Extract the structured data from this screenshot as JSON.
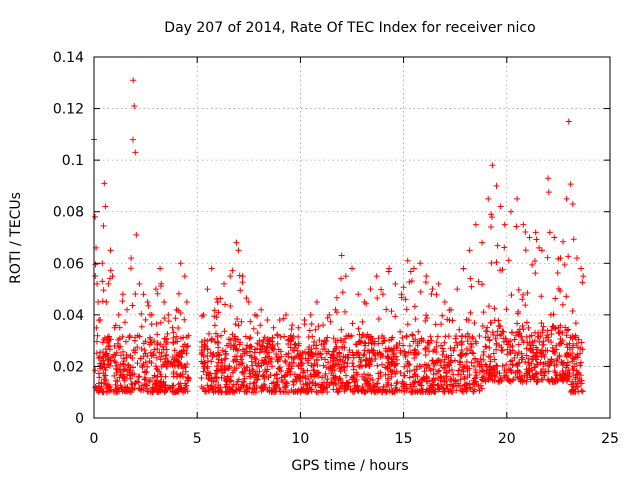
{
  "chart_data": {
    "type": "scatter",
    "title": "Day 207 of 2014, Rate Of TEC Index for receiver nico",
    "xlabel": "GPS time / hours",
    "ylabel": "ROTI / TECUs",
    "xlim": [
      0,
      25
    ],
    "ylim": [
      0,
      0.14
    ],
    "xticks": [
      0,
      5,
      10,
      15,
      20,
      25
    ],
    "xtick_labels": [
      "0",
      "5",
      "10",
      "15",
      "20",
      "25"
    ],
    "yticks": [
      0,
      0.02,
      0.04,
      0.06,
      0.08,
      0.1,
      0.12,
      0.14
    ],
    "ytick_labels": [
      "0",
      "0.02",
      "0.04",
      "0.06",
      "0.08",
      "0.1",
      "0.12",
      "0.14"
    ],
    "grid": true,
    "marker": "plus",
    "color": "#ff0000",
    "data_gaps_hours": [
      [
        4.6,
        5.2
      ]
    ],
    "series": [
      {
        "name": "ROTI",
        "x": [
          0.0,
          0.05,
          0.1,
          0.15,
          0.2,
          0.3,
          0.4,
          0.5,
          0.55,
          0.6,
          0.7,
          0.8,
          0.9,
          1.0,
          1.2,
          1.4,
          1.6,
          1.8,
          1.9,
          1.95,
          2.0,
          2.05,
          2.2,
          2.4,
          2.6,
          2.8,
          3.0,
          3.2,
          3.4,
          3.6,
          3.8,
          4.0,
          4.2,
          4.4,
          4.5,
          5.3,
          5.5,
          5.7,
          6.0,
          6.3,
          6.6,
          6.9,
          7.0,
          7.2,
          7.5,
          7.8,
          8.1,
          8.4,
          8.7,
          9.0,
          9.3,
          9.6,
          9.9,
          10.2,
          10.5,
          10.8,
          11.1,
          11.4,
          11.7,
          12.0,
          12.2,
          12.5,
          12.8,
          13.1,
          13.4,
          13.7,
          14.0,
          14.3,
          14.6,
          14.9,
          15.2,
          15.5,
          15.8,
          16.1,
          16.4,
          16.7,
          17.0,
          17.3,
          17.6,
          17.9,
          18.2,
          18.5,
          18.8,
          19.1,
          19.3,
          19.5,
          19.7,
          19.9,
          20.2,
          20.5,
          20.8,
          21.1,
          21.4,
          21.7,
          22.0,
          22.3,
          22.6,
          22.9,
          23.0,
          23.2,
          23.4,
          23.6,
          23.7
        ],
        "y": [
          0.108,
          0.078,
          0.066,
          0.052,
          0.045,
          0.038,
          0.06,
          0.091,
          0.082,
          0.045,
          0.052,
          0.065,
          0.055,
          0.035,
          0.04,
          0.048,
          0.042,
          0.062,
          0.131,
          0.121,
          0.103,
          0.071,
          0.052,
          0.048,
          0.045,
          0.04,
          0.05,
          0.058,
          0.045,
          0.04,
          0.035,
          0.042,
          0.06,
          0.055,
          0.045,
          0.04,
          0.05,
          0.058,
          0.045,
          0.052,
          0.055,
          0.068,
          0.065,
          0.055,
          0.045,
          0.04,
          0.042,
          0.038,
          0.035,
          0.038,
          0.04,
          0.036,
          0.035,
          0.038,
          0.04,
          0.045,
          0.036,
          0.04,
          0.042,
          0.063,
          0.055,
          0.058,
          0.048,
          0.045,
          0.05,
          0.055,
          0.048,
          0.058,
          0.052,
          0.048,
          0.061,
          0.058,
          0.06,
          0.055,
          0.05,
          0.052,
          0.045,
          0.042,
          0.05,
          0.058,
          0.065,
          0.075,
          0.068,
          0.085,
          0.098,
          0.09,
          0.082,
          0.075,
          0.08,
          0.085,
          0.075,
          0.07,
          0.072,
          0.065,
          0.093,
          0.07,
          0.062,
          0.085,
          0.115,
          0.083,
          0.062,
          0.058,
          0.055
        ]
      }
    ]
  }
}
